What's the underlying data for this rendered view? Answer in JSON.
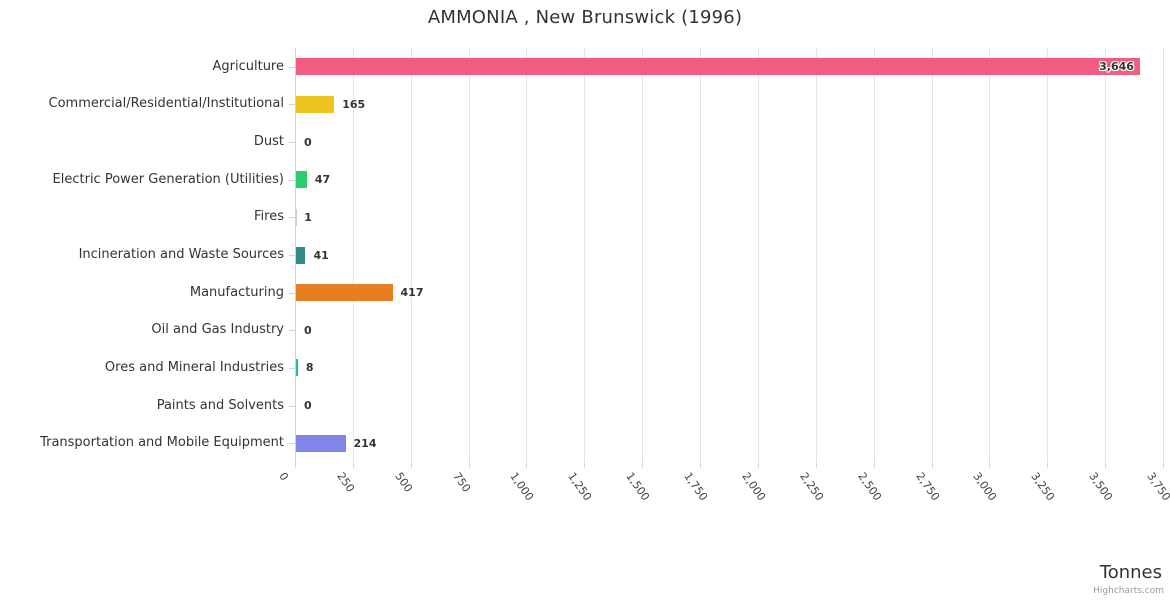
{
  "title": "AMMONIA , New Brunswick (1996)",
  "axis_title": "Tonnes",
  "credit": "Highcharts.com",
  "chart_data": {
    "type": "bar",
    "orientation": "horizontal",
    "title": "AMMONIA , New Brunswick (1996)",
    "xlabel": "Tonnes",
    "ylabel": "",
    "xlim": [
      0,
      3750
    ],
    "grid": true,
    "x_tick_labels": [
      "0",
      "250",
      "500",
      "750",
      "1,000",
      "1,250",
      "1,500",
      "1,750",
      "2,000",
      "2,250",
      "2,500",
      "2,750",
      "3,000",
      "3,250",
      "3,500",
      "3,750"
    ],
    "categories": [
      "Agriculture",
      "Commercial/Residential/Institutional",
      "Dust",
      "Electric Power Generation (Utilities)",
      "Fires",
      "Incineration and Waste Sources",
      "Manufacturing",
      "Oil and Gas Industry",
      "Ores and Mineral Industries",
      "Paints and Solvents",
      "Transportation and Mobile Equipment"
    ],
    "values": [
      3646,
      165,
      0,
      47,
      1,
      41,
      417,
      0,
      8,
      0,
      214
    ],
    "value_labels": [
      "3,646",
      "165",
      "0",
      "47",
      "1",
      "41",
      "417",
      "0",
      "8",
      "0",
      "214"
    ],
    "bar_colors": [
      "#f15c80",
      "#edc41e",
      "#cccccc",
      "#2ecc71",
      "#cccccc",
      "#2e8c8c",
      "#e67e22",
      "#cccccc",
      "#1ebea5",
      "#cccccc",
      "#8085e9"
    ]
  },
  "colors": {
    "background": "#ffffff",
    "title": "#333333",
    "category_label": "#333333",
    "value_label": "#333333",
    "tick_label": "#444444",
    "grid": "#e6e6e6",
    "axis": "#ccd6eb",
    "axis_title": "#333333",
    "credit": "#999999"
  }
}
